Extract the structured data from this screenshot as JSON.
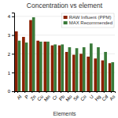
{
  "chart_data": {
    "type": "bar",
    "title": "Concentration vs element",
    "xlabel": "Elements",
    "categories": [
      "Al",
      "P",
      "Zn",
      "Cu",
      "Mn",
      "Cr",
      "Pb",
      "Mo",
      "Se",
      "Co",
      "U",
      "Hg",
      "Cd",
      "As"
    ],
    "series": [
      {
        "name": "RAW Influent (PPM)",
        "color": "#8B2000",
        "values": [
          3.2,
          2.9,
          3.8,
          2.7,
          2.65,
          2.45,
          2.45,
          2.1,
          1.95,
          2.0,
          1.85,
          1.75,
          1.65,
          1.5
        ]
      },
      {
        "name": "MAX Recommended",
        "color": "#3A7A3A",
        "values": [
          2.7,
          2.6,
          3.95,
          2.65,
          2.65,
          2.5,
          2.5,
          2.35,
          2.3,
          2.35,
          2.55,
          2.35,
          2.1,
          1.55
        ]
      }
    ],
    "ylim": [
      0,
      4.2
    ],
    "yticks": [
      0,
      1,
      2,
      3,
      4
    ],
    "grid": true,
    "legend": "upper right"
  }
}
